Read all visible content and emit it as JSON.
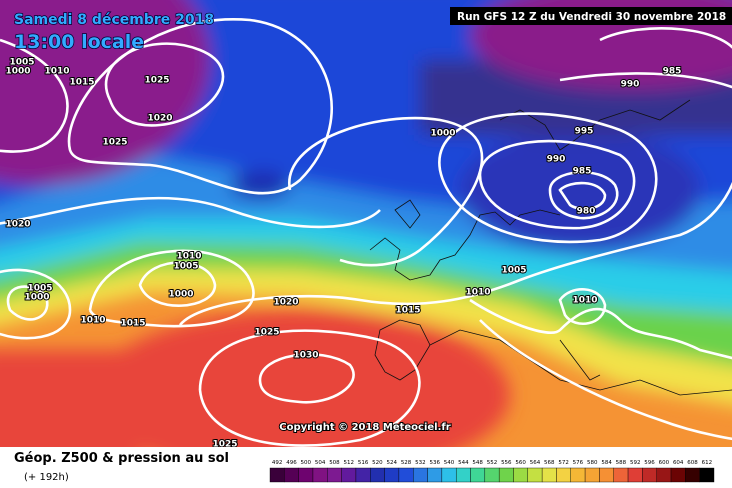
{
  "header": {
    "date": "Samedi 8 décembre 2018",
    "time": "13:00 locale",
    "run": "Run GFS 12 Z du Vendredi 30 novembre 2018"
  },
  "isobar_labels": [
    1005,
    1000,
    1010,
    1015,
    1025,
    1020,
    1025,
    1000,
    995,
    990,
    985,
    990,
    985,
    980,
    1020,
    1010,
    1005,
    1005,
    1000,
    1000,
    1010,
    1015,
    1020,
    1015,
    1005,
    1010,
    1010,
    1025,
    1030,
    1025
  ],
  "copyright": "Copyright © 2018 Meteociel.fr",
  "legend": {
    "title": "Géop. Z500 & pression au sol",
    "lead_time": "(+ 192h)",
    "scale": [
      492,
      496,
      500,
      504,
      508,
      512,
      516,
      520,
      524,
      528,
      532,
      536,
      540,
      544,
      548,
      552,
      556,
      560,
      564,
      568,
      572,
      576,
      580,
      584,
      588,
      592,
      596,
      600,
      604,
      608,
      612
    ]
  }
}
